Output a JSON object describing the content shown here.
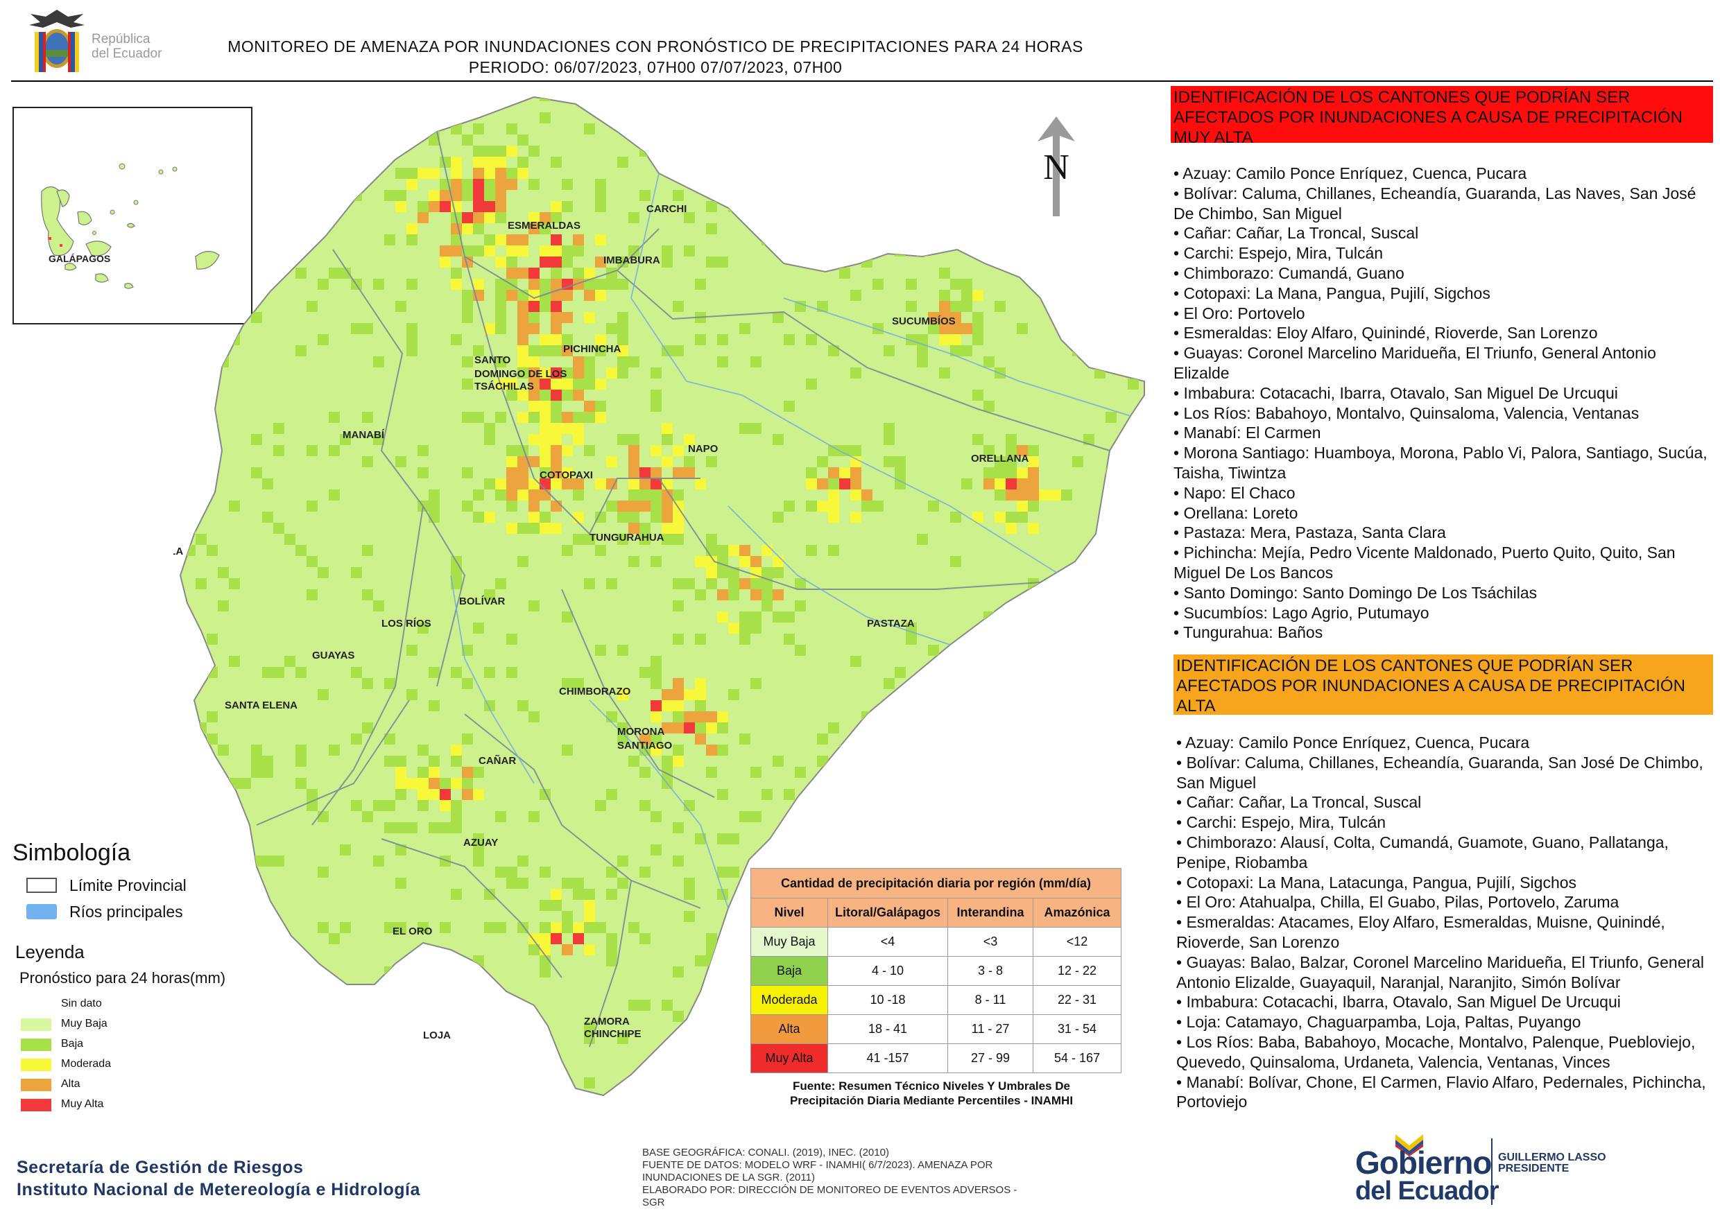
{
  "header": {
    "title_line1": "MONITOREO DE AMENAZA POR INUNDACIONES  CON PRONÓSTICO DE  PRECIPITACIONES PARA 24 HORAS",
    "title_line2": "PERIODO: 06/07/2023, 07H00 07/07/2023, 07H00",
    "logo_text_line1": "República",
    "logo_text_line2": "del Ecuador"
  },
  "map": {
    "north_label": "N",
    "inset_label": "GALÁPAGOS",
    "provinces": [
      "ESMERALDAS",
      "CARCHI",
      "IMBABURA",
      "SUCUMBÍOS",
      "PICHINCHA",
      "SANTO",
      "DOMINGO DE LOS",
      "TSÁCHILAS",
      "MANABÍ",
      "NAPO",
      "ORELLANA",
      "COTOPAXI",
      "TUNGURAHUA",
      "ISLA",
      "BOLÍVAR",
      "LOS RÍOS",
      "PASTAZA",
      "GUAYAS",
      "CHIMBORAZO",
      "SANTA ELENA",
      "MORONA",
      "SANTIAGO",
      "CAÑAR",
      "AZUAY",
      "EL ORO",
      "ZAMORA",
      "CHINCHIPE",
      "LOJA"
    ]
  },
  "legend": {
    "sym_title": "Simbología",
    "limit_label": "Límite Provincial",
    "rivers_label": "Ríos principales",
    "ley_title": "Leyenda",
    "forecast_title": "Pronóstico para 24 horas(mm)",
    "levels": [
      {
        "name": "Sin dato",
        "color": "#ffffff"
      },
      {
        "name": "Muy Baja",
        "color": "#d7f8a0"
      },
      {
        "name": "Baja",
        "color": "#a8e04a"
      },
      {
        "name": "Moderada",
        "color": "#f8f83a"
      },
      {
        "name": "Alta",
        "color": "#eba43e"
      },
      {
        "name": "Muy Alta",
        "color": "#f23a3a"
      }
    ]
  },
  "table": {
    "caption": "Cantidad de precipitación diaria por región (mm/día)",
    "headers": [
      "Nivel",
      "Litoral/Galápagos",
      "Interandina",
      "Amazónica"
    ],
    "rows": [
      {
        "nivel": "Muy Baja",
        "color": "#e5f8cc",
        "litoral": "<4",
        "interandina": "<3",
        "amazonica": "<12"
      },
      {
        "nivel": "Baja",
        "color": "#8fd04d",
        "litoral": "4 - 10",
        "interandina": "3 - 8",
        "amazonica": "12 - 22"
      },
      {
        "nivel": "Moderada",
        "color": "#f7f200",
        "litoral": "10 -18",
        "interandina": "8 - 11",
        "amazonica": "22 - 31"
      },
      {
        "nivel": "Alta",
        "color": "#f19a3e",
        "litoral": "18 - 41",
        "interandina": "11 - 27",
        "amazonica": "31 - 54"
      },
      {
        "nivel": "Muy Alta",
        "color": "#ef2b2b",
        "litoral": "41 -157",
        "interandina": "27 - 99",
        "amazonica": "54 - 167"
      }
    ],
    "source_line1": "Fuente: Resumen Técnico Niveles Y Umbrales De",
    "source_line2": "Precipitación Diaria Mediante Percentiles - INAMHI"
  },
  "base_info": [
    "BASE GEOGRÁFICA: CONALI. (2019), INEC. (2010)",
    "FUENTE DE DATOS: MODELO WRF - INAMHI( 6/7/2023).  AMENAZA POR",
    "INUNDACIONES DE LA SGR. (2011)",
    "ELABORADO POR: DIRECCIÓN DE MONITOREO DE EVENTOS ADVERSOS - SGR"
  ],
  "footer": {
    "org_line1": "Secretaría de Gestión de Riesgos",
    "org_line2": "Instituto Nacional de Metereología e Hidrología",
    "gob_line1": "Gobierno",
    "gob_line2": "del Ecuador",
    "president_line1": "GUILLERMO LASSO",
    "president_line2": "PRESIDENTE"
  },
  "muy_alta": {
    "header": "IDENTIFICACIÓN DE LOS CANTONES QUE PODRÍAN SER AFECTADOS POR INUNDACIONES  A CAUSA DE PRECIPITACIÓN MUY ALTA",
    "items": [
      "• Azuay: Camilo Ponce Enríquez, Cuenca, Pucara",
      "• Bolívar: Caluma, Chillanes, Echeandía, Guaranda, Las Naves, San José De Chimbo, San Miguel",
      "• Cañar: Cañar, La Troncal, Suscal",
      "• Carchi: Espejo, Mira, Tulcán",
      "• Chimborazo: Cumandá, Guano",
      "• Cotopaxi: La Mana, Pangua, Pujilí, Sigchos",
      "• El Oro: Portovelo",
      "• Esmeraldas: Eloy Alfaro, Quinindé, Rioverde, San Lorenzo",
      "• Guayas: Coronel Marcelino Maridueña, El Triunfo, General Antonio Elizalde",
      "• Imbabura: Cotacachi, Ibarra, Otavalo, San Miguel De Urcuqui",
      "• Los Ríos: Babahoyo, Montalvo, Quinsaloma, Valencia, Ventanas",
      "• Manabí: El Carmen",
      "• Morona Santiago: Huamboya, Morona, Pablo Vi, Palora, Santiago, Sucúa, Taisha, Tiwintza",
      "• Napo: El Chaco",
      "• Orellana: Loreto",
      "• Pastaza: Mera, Pastaza, Santa Clara",
      "• Pichincha: Mejía, Pedro Vicente Maldonado, Puerto Quito, Quito, San Miguel De Los Bancos",
      "• Santo Domingo: Santo Domingo De Los Tsáchilas",
      "• Sucumbíos: Lago Agrio, Putumayo",
      "• Tungurahua: Baños"
    ]
  },
  "alta": {
    "header": "IDENTIFICACIÓN DE LOS CANTONES QUE  PODRÍAN SER AFECTADOS POR INUNDACIONES  A CAUSA DE PRECIPITACIÓN ALTA",
    "items": [
      "• Azuay: Camilo Ponce Enríquez, Cuenca, Pucara",
      "• Bolívar: Caluma, Chillanes, Echeandía, Guaranda, San José De Chimbo, San Miguel",
      "• Cañar: Cañar, La Troncal, Suscal",
      "• Carchi: Espejo, Mira, Tulcán",
      "• Chimborazo: Alausí, Colta, Cumandá, Guamote, Guano, Pallatanga, Penipe, Riobamba",
      "• Cotopaxi: La Mana, Latacunga, Pangua, Pujilí, Sigchos",
      "• El Oro: Atahualpa, Chilla, El Guabo, Pilas, Portovelo, Zaruma",
      "• Esmeraldas: Atacames, Eloy Alfaro, Esmeraldas, Muisne, Quinindé, Rioverde, San Lorenzo",
      "• Guayas: Balao, Balzar, Coronel Marcelino Maridueña, El Triunfo, General Antonio Elizalde, Guayaquil, Naranjal, Naranjito, Simón Bolívar",
      "• Imbabura: Cotacachi, Ibarra, Otavalo, San Miguel De Urcuqui",
      "• Loja: Catamayo, Chaguarpamba, Loja, Paltas, Puyango",
      "• Los Ríos: Baba, Babahoyo, Mocache, Montalvo, Palenque, Puebloviejo, Quevedo, Quinsaloma, Urdaneta, Valencia, Ventanas, Vinces",
      "• Manabí: Bolívar, Chone, El Carmen, Flavio Alfaro, Pedernales, Pichincha, Portoviejo"
    ]
  }
}
